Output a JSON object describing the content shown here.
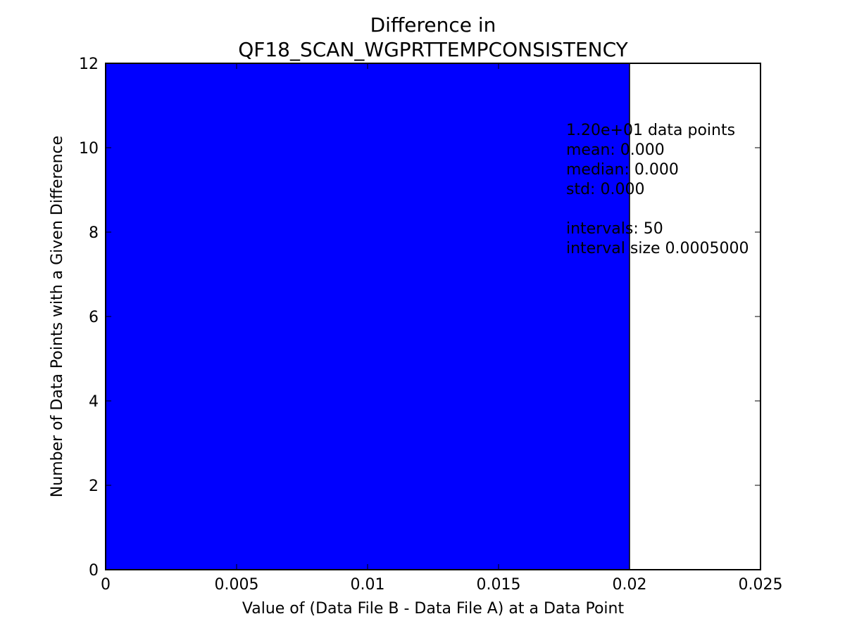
{
  "chart_data": {
    "type": "bar",
    "title_lines": [
      "Difference in",
      "QF18_SCAN_WGPRTTEMPCONSISTENCY"
    ],
    "xlabel": "Value of (Data File B - Data File A) at a Data Point",
    "ylabel": "Number of Data Points with a Given Difference",
    "xlim": [
      0,
      0.025
    ],
    "ylim": [
      0,
      12
    ],
    "x_ticks": [
      0,
      0.005,
      0.01,
      0.015,
      0.02,
      0.025
    ],
    "x_tick_labels": [
      "0",
      "0.005",
      "0.01",
      "0.015",
      "0.02",
      "0.025"
    ],
    "y_ticks": [
      0,
      2,
      4,
      6,
      8,
      10,
      12
    ],
    "y_tick_labels": [
      "0",
      "2",
      "4",
      "6",
      "8",
      "10",
      "12"
    ],
    "bars": [
      {
        "x_start": 0,
        "x_end": 0.02,
        "count": 12
      }
    ],
    "grid": false,
    "bar_color": "#0000ff",
    "stats_annotation": [
      "1.20e+01 data points",
      "mean: 0.000",
      "median: 0.000",
      "std: 0.000",
      "",
      "intervals: 50",
      "interval size 0.0005000"
    ]
  }
}
